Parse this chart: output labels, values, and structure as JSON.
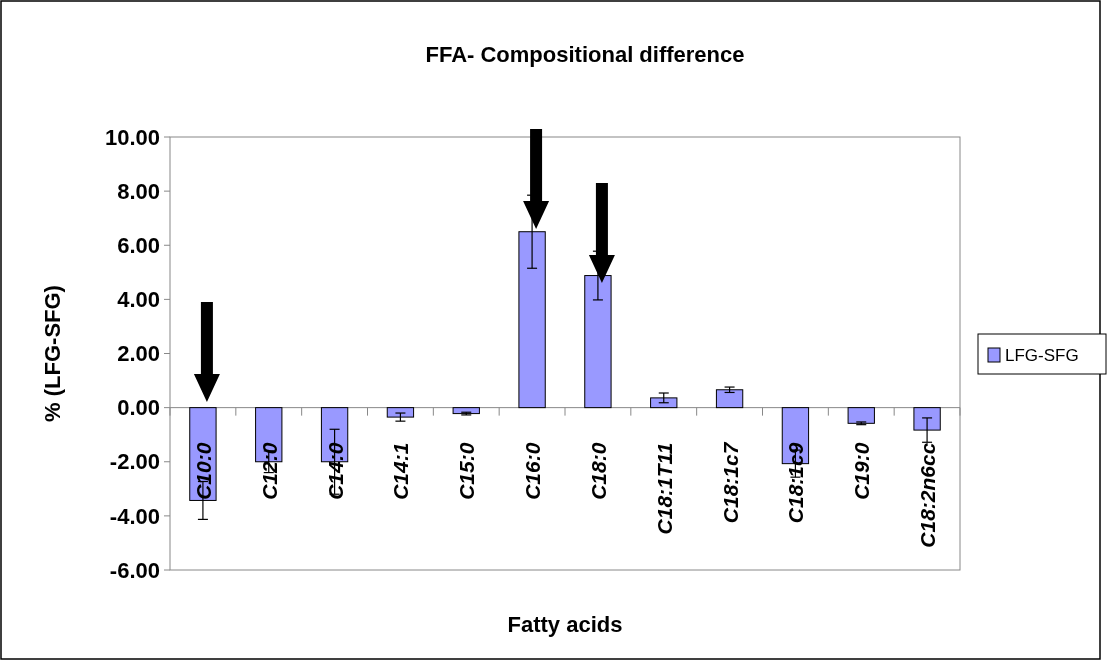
{
  "chart_data": {
    "type": "bar",
    "title": "FFA- Compositional difference",
    "xlabel": "Fatty acids",
    "ylabel": "% (LFG-SFG)",
    "categories": [
      "C10:0",
      "C12:0",
      "C14:0",
      "C14:1",
      "C15:0",
      "C16:0",
      "C18:0",
      "C18:1T11",
      "C18:1c7",
      "C18:1c9",
      "C19:0",
      "C18:2n6cc"
    ],
    "series": [
      {
        "name": "LFG-SFG",
        "color": "#9999ff",
        "values": [
          -3.43,
          -2.0,
          -2.0,
          -0.35,
          -0.22,
          6.5,
          4.88,
          0.36,
          0.66,
          -2.07,
          -0.58,
          -0.83
        ],
        "errors": [
          0.7,
          0.4,
          1.2,
          0.15,
          0.05,
          1.35,
          0.9,
          0.18,
          0.1,
          0.5,
          0.05,
          0.45
        ]
      }
    ],
    "ylim": [
      -6,
      10
    ],
    "yticks": [
      {
        "value": -6,
        "label": "-6.00"
      },
      {
        "value": -4,
        "label": "-4.00"
      },
      {
        "value": -2,
        "label": "-2.00"
      },
      {
        "value": 0,
        "label": "0.00"
      },
      {
        "value": 2,
        "label": "2.00"
      },
      {
        "value": 4,
        "label": "4.00"
      },
      {
        "value": 6,
        "label": "6.00"
      },
      {
        "value": 8,
        "label": "8.00"
      },
      {
        "value": 10,
        "label": "10.00"
      }
    ],
    "legend": "right"
  }
}
